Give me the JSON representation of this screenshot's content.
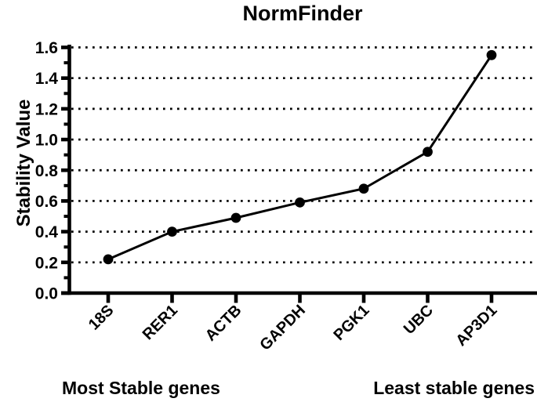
{
  "chart_data": {
    "type": "line",
    "title": "NormFinder",
    "xlabel": "",
    "ylabel": "Stability Value",
    "categories": [
      "18S",
      "RER1",
      "ACTB",
      "GAPDH",
      "PGK1",
      "UBC",
      "AP3D1"
    ],
    "series": [
      {
        "name": "Stability Value",
        "values": [
          0.22,
          0.4,
          0.49,
          0.59,
          0.68,
          0.92,
          1.55
        ]
      }
    ],
    "ylim": [
      0.0,
      1.6
    ],
    "ytick_step": 0.2,
    "ytick_minor_step": 0.1,
    "ytick_labels": [
      "0.0",
      "0.2",
      "0.4",
      "0.6",
      "0.8",
      "1.0",
      "1.2",
      "1.4",
      "1.6"
    ],
    "grid": "horizontal-dotted",
    "legend": "none",
    "marker": "filled-circle",
    "line_color": "#000000",
    "marker_color": "#000000",
    "axis_color": "#000000",
    "background_color": "#ffffff",
    "annotations": [
      "Most Stable genes",
      "Least stable genes"
    ]
  }
}
